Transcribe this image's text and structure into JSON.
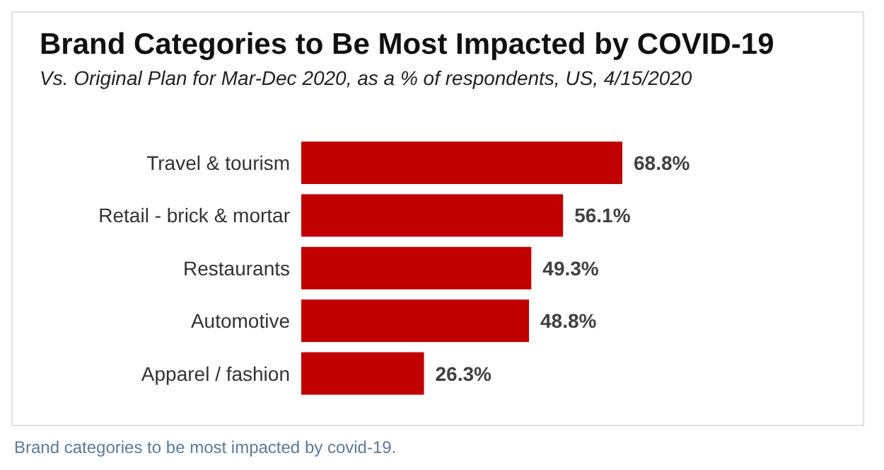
{
  "chart_data": {
    "type": "bar",
    "orientation": "horizontal",
    "title": "Brand Categories to Be Most Impacted by COVID-19",
    "subtitle": "Vs. Original Plan for Mar-Dec 2020, as a % of respondents, US, 4/15/2020",
    "categories": [
      "Travel & tourism",
      "Retail - brick & mortar",
      "Restaurants",
      "Automotive",
      "Apparel / fashion"
    ],
    "values": [
      68.8,
      56.1,
      49.3,
      48.8,
      26.3
    ],
    "value_labels": [
      "68.8%",
      "56.1%",
      "49.3%",
      "48.8%",
      "26.3%"
    ],
    "color": "#c00000",
    "annotations": [
      "Brand categories to be most impacted by covid-19."
    ]
  }
}
